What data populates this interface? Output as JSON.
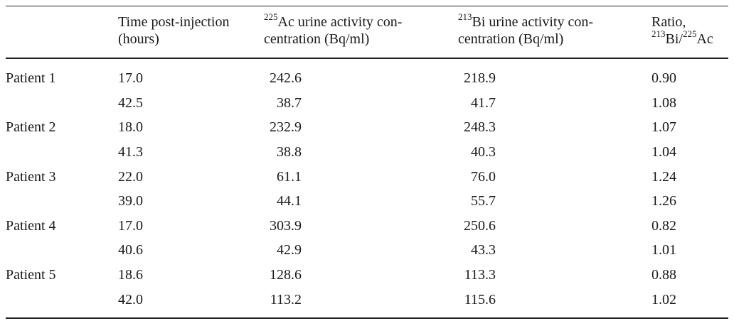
{
  "table": {
    "headers": {
      "patient": "",
      "time_line1": "Time post-injection",
      "time_line2": "(hours)",
      "ac_sup": "225",
      "ac_line1": "Ac urine activity con-",
      "ac_line2": "centration (Bq/ml)",
      "bi_sup": "213",
      "bi_line1": "Bi urine activity con-",
      "bi_line2": "centration (Bq/ml)",
      "ratio_line1": "Ratio,",
      "ratio_bi_sup": "213",
      "ratio_bi": "Bi/",
      "ratio_ac_sup": "225",
      "ratio_ac": "Ac"
    },
    "rows": [
      {
        "patient": "Patient 1",
        "time": "17.0",
        "ac": "242.6",
        "bi": "218.9",
        "ratio": "0.90"
      },
      {
        "patient": "",
        "time": "42.5",
        "ac": "38.7",
        "bi": "41.7",
        "ratio": "1.08"
      },
      {
        "patient": "Patient 2",
        "time": "18.0",
        "ac": "232.9",
        "bi": "248.3",
        "ratio": "1.07"
      },
      {
        "patient": "",
        "time": "41.3",
        "ac": "38.8",
        "bi": "40.3",
        "ratio": "1.04"
      },
      {
        "patient": "Patient 3",
        "time": "22.0",
        "ac": "61.1",
        "bi": "76.0",
        "ratio": "1.24"
      },
      {
        "patient": "",
        "time": "39.0",
        "ac": "44.1",
        "bi": "55.7",
        "ratio": "1.26"
      },
      {
        "patient": "Patient 4",
        "time": "17.0",
        "ac": "303.9",
        "bi": "250.6",
        "ratio": "0.82"
      },
      {
        "patient": "",
        "time": "40.6",
        "ac": "42.9",
        "bi": "43.3",
        "ratio": "1.01"
      },
      {
        "patient": "Patient 5",
        "time": "18.6",
        "ac": "128.6",
        "bi": "113.3",
        "ratio": "0.88"
      },
      {
        "patient": "",
        "time": "42.0",
        "ac": "113.2",
        "bi": "115.6",
        "ratio": "1.02"
      }
    ]
  }
}
